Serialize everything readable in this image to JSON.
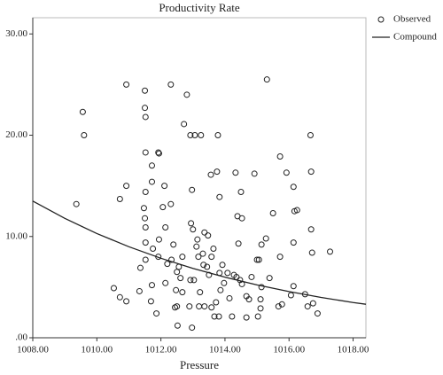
{
  "chart_data": {
    "type": "scatter",
    "title": "Productivity Rate",
    "x_label": "Pressure",
    "xlim": [
      1008,
      1018.4
    ],
    "ylim": [
      0,
      31.6
    ],
    "xticks": [
      {
        "value": 1008,
        "label": "1008.00"
      },
      {
        "value": 1010,
        "label": "1010.00"
      },
      {
        "value": 1012,
        "label": "1012.00"
      },
      {
        "value": 1014,
        "label": "1014.00"
      },
      {
        "value": 1016,
        "label": "1016.00"
      },
      {
        "value": 1018,
        "label": "1018.00"
      }
    ],
    "yticks": [
      {
        "value": 0,
        "label": ".00"
      },
      {
        "value": 10,
        "label": "10.00"
      },
      {
        "value": 20,
        "label": "20.00"
      },
      {
        "value": 30,
        "label": "30.00"
      }
    ],
    "grid": false,
    "legend": "right",
    "series": [
      {
        "name": "Observed",
        "type": "scatter",
        "color": "#222222",
        "x": [
          1009.36,
          1009.56,
          1009.6,
          1010.53,
          1010.72,
          1010.72,
          1010.92,
          1010.92,
          1010.92,
          1011.33,
          1011.36,
          1011.5,
          1011.5,
          1011.52,
          1011.52,
          1011.5,
          1011.52,
          1011.52,
          1011.52,
          1011.47,
          1011.52,
          1011.72,
          1011.72,
          1011.72,
          1011.69,
          1011.75,
          1011.92,
          1011.94,
          1011.94,
          1011.92,
          1011.86,
          1012.14,
          1012.11,
          1012.06,
          1012.14,
          1012.31,
          1012.31,
          1012.2,
          1012.33,
          1012.39,
          1012.47,
          1012.44,
          1012.5,
          1012.52,
          1012.5,
          1012.56,
          1012.61,
          1012.67,
          1012.67,
          1012.72,
          1012.81,
          1012.92,
          1013.06,
          1012.97,
          1013.0,
          1012.94,
          1012.92,
          1012.89,
          1012.97,
          1013.03,
          1013.11,
          1013.14,
          1013.22,
          1013.17,
          1013.19,
          1013.25,
          1013.31,
          1013.36,
          1013.33,
          1013.36,
          1013.44,
          1013.47,
          1013.56,
          1013.5,
          1013.58,
          1013.58,
          1013.64,
          1013.67,
          1013.72,
          1013.75,
          1013.78,
          1013.81,
          1013.86,
          1013.83,
          1013.83,
          1013.92,
          1013.97,
          1014.08,
          1014.14,
          1014.22,
          1014.28,
          1014.33,
          1014.36,
          1014.39,
          1014.42,
          1014.47,
          1014.53,
          1014.53,
          1014.67,
          1014.75,
          1014.83,
          1014.92,
          1015.0,
          1015.03,
          1015.06,
          1015.11,
          1015.11,
          1015.14,
          1015.31,
          1015.39,
          1015.5,
          1015.67,
          1015.78,
          1015.72,
          1015.72,
          1015.92,
          1016.06,
          1016.14,
          1016.17,
          1016.25,
          1016.14,
          1016.14,
          1016.5,
          1016.67,
          1016.69,
          1016.69,
          1016.72,
          1016.75,
          1016.89,
          1017.28,
          1016.58,
          1014.5,
          1015.14,
          1014.67,
          1015.28
        ],
        "values": [
          13.2,
          22.3,
          20.0,
          4.9,
          13.7,
          4.0,
          25.0,
          15.0,
          3.6,
          4.6,
          6.9,
          24.4,
          22.7,
          21.8,
          14.4,
          11.8,
          10.9,
          9.4,
          7.7,
          12.8,
          18.3,
          15.4,
          17.0,
          5.2,
          3.6,
          8.8,
          18.3,
          18.2,
          9.7,
          8.0,
          2.4,
          10.9,
          15.0,
          12.9,
          5.4,
          25.0,
          13.2,
          7.3,
          7.7,
          9.2,
          4.7,
          3.0,
          3.1,
          1.2,
          6.5,
          7.0,
          5.9,
          8.0,
          4.5,
          21.1,
          24.0,
          20.0,
          20.0,
          14.6,
          10.7,
          11.3,
          5.7,
          3.1,
          1.0,
          5.7,
          9.0,
          9.7,
          4.5,
          8.0,
          3.1,
          20.0,
          8.3,
          3.1,
          7.2,
          10.4,
          7.0,
          10.1,
          16.1,
          6.2,
          8.0,
          3.0,
          8.8,
          2.1,
          3.5,
          16.4,
          20.0,
          2.1,
          4.7,
          13.9,
          6.4,
          7.2,
          5.4,
          6.4,
          3.9,
          2.1,
          6.2,
          16.3,
          6.0,
          12.0,
          9.3,
          5.7,
          11.8,
          5.3,
          2.0,
          3.8,
          6.0,
          16.2,
          7.7,
          2.1,
          7.7,
          3.8,
          2.9,
          5.0,
          25.5,
          5.9,
          12.3,
          3.1,
          3.3,
          17.9,
          8.0,
          16.3,
          4.2,
          5.1,
          12.5,
          12.6,
          9.4,
          14.9,
          4.3,
          20.0,
          16.4,
          10.7,
          8.4,
          3.4,
          2.4,
          8.5,
          3.1,
          14.4,
          9.2,
          4.1,
          9.8
        ]
      },
      {
        "name": "Compound",
        "type": "line",
        "color": "#222222",
        "x": [
          1008,
          1009,
          1010,
          1011,
          1012,
          1013,
          1014,
          1015,
          1016,
          1017,
          1018,
          1018.4
        ],
        "values": [
          13.5,
          11.79,
          10.29,
          8.99,
          7.85,
          6.85,
          5.98,
          5.22,
          4.56,
          3.98,
          3.48,
          3.31
        ]
      }
    ]
  }
}
